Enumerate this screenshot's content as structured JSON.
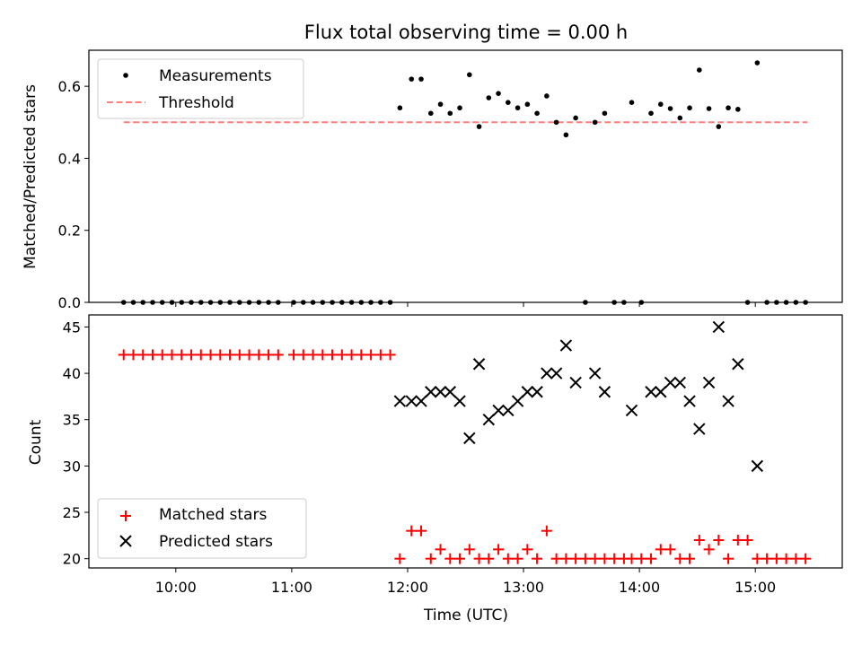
{
  "chart_data": [
    {
      "type": "scatter",
      "title": "Flux total observing time = 0.00 h",
      "ylabel": "Matched/Predicted stars",
      "xlabel": "",
      "ylim": [
        0,
        0.7
      ],
      "yticks": [
        "0.0",
        "0.2",
        "0.4",
        "0.6"
      ],
      "ytick_values": [
        0,
        0.2,
        0.4,
        0.6
      ],
      "grid": false,
      "legend_position": "upper left",
      "legend": [
        {
          "label": "Measurements",
          "marker": "dot",
          "color": "#000000"
        },
        {
          "label": "Threshold",
          "marker": "dashed-line",
          "color": "#ff7f7f"
        }
      ],
      "threshold": {
        "value": 0.5,
        "x_start": "09:33",
        "x_end": "15:27"
      },
      "series": [
        {
          "name": "Measurements",
          "points": [
            [
              "09:33",
              0
            ],
            [
              "09:38",
              0
            ],
            [
              "09:43",
              0
            ],
            [
              "09:48",
              0
            ],
            [
              "09:53",
              0
            ],
            [
              "09:58",
              0
            ],
            [
              "10:03",
              0
            ],
            [
              "10:08",
              0
            ],
            [
              "10:13",
              0
            ],
            [
              "10:18",
              0
            ],
            [
              "10:23",
              0
            ],
            [
              "10:28",
              0
            ],
            [
              "10:33",
              0
            ],
            [
              "10:38",
              0
            ],
            [
              "10:43",
              0
            ],
            [
              "10:48",
              0
            ],
            [
              "10:53",
              0
            ],
            [
              "11:01",
              0
            ],
            [
              "11:06",
              0
            ],
            [
              "11:11",
              0
            ],
            [
              "11:16",
              0
            ],
            [
              "11:21",
              0
            ],
            [
              "11:26",
              0
            ],
            [
              "11:31",
              0
            ],
            [
              "11:36",
              0
            ],
            [
              "11:41",
              0
            ],
            [
              "11:46",
              0
            ],
            [
              "11:51",
              0
            ],
            [
              "11:56",
              0.54
            ],
            [
              "12:02",
              0.62
            ],
            [
              "12:07",
              0.62
            ],
            [
              "12:12",
              0.525
            ],
            [
              "12:17",
              0.55
            ],
            [
              "12:22",
              0.525
            ],
            [
              "12:27",
              0.54
            ],
            [
              "12:32",
              0.632
            ],
            [
              "12:37",
              0.488
            ],
            [
              "12:42",
              0.568
            ],
            [
              "12:47",
              0.58
            ],
            [
              "12:52",
              0.555
            ],
            [
              "12:57",
              0.54
            ],
            [
              "13:02",
              0.55
            ],
            [
              "13:07",
              0.525
            ],
            [
              "13:12",
              0.573
            ],
            [
              "13:17",
              0.5
            ],
            [
              "13:22",
              0.465
            ],
            [
              "13:27",
              0.512
            ],
            [
              "13:32",
              0
            ],
            [
              "13:37",
              0.5
            ],
            [
              "13:42",
              0.525
            ],
            [
              "13:47",
              0
            ],
            [
              "13:52",
              0
            ],
            [
              "13:56",
              0.555
            ],
            [
              "14:01",
              0
            ],
            [
              "14:06",
              0.525
            ],
            [
              "14:11",
              0.55
            ],
            [
              "14:16",
              0.538
            ],
            [
              "14:21",
              0.512
            ],
            [
              "14:26",
              0.54
            ],
            [
              "14:31",
              0.645
            ],
            [
              "14:36",
              0.538
            ],
            [
              "14:41",
              0.488
            ],
            [
              "14:46",
              0.54
            ],
            [
              "14:51",
              0.536
            ],
            [
              "14:56",
              0
            ],
            [
              "15:01",
              0.665
            ],
            [
              "15:06",
              0
            ],
            [
              "15:11",
              0
            ],
            [
              "15:16",
              0
            ],
            [
              "15:21",
              0
            ],
            [
              "15:26",
              0
            ]
          ]
        }
      ]
    },
    {
      "type": "scatter",
      "title": "",
      "ylabel": "Count",
      "xlabel": "Time (UTC)",
      "ylim": [
        19,
        46.3
      ],
      "yticks": [
        "20",
        "25",
        "30",
        "35",
        "40",
        "45"
      ],
      "ytick_values": [
        20,
        25,
        30,
        35,
        40,
        45
      ],
      "xticks": [
        "10:00",
        "11:00",
        "12:00",
        "13:00",
        "14:00",
        "15:00"
      ],
      "xtick_values": [
        "10:00",
        "11:00",
        "12:00",
        "13:00",
        "14:00",
        "15:00"
      ],
      "xlim": [
        "09:15",
        "15:45"
      ],
      "grid": false,
      "legend_position": "lower left",
      "legend": [
        {
          "label": "Matched stars",
          "marker": "plus",
          "color": "#ff0000"
        },
        {
          "label": "Predicted stars",
          "marker": "x",
          "color": "#000000"
        }
      ],
      "series": [
        {
          "name": "Matched stars",
          "points": [
            [
              "09:33",
              42
            ],
            [
              "09:38",
              42
            ],
            [
              "09:43",
              42
            ],
            [
              "09:48",
              42
            ],
            [
              "09:53",
              42
            ],
            [
              "09:58",
              42
            ],
            [
              "10:03",
              42
            ],
            [
              "10:08",
              42
            ],
            [
              "10:13",
              42
            ],
            [
              "10:18",
              42
            ],
            [
              "10:23",
              42
            ],
            [
              "10:28",
              42
            ],
            [
              "10:33",
              42
            ],
            [
              "10:38",
              42
            ],
            [
              "10:43",
              42
            ],
            [
              "10:48",
              42
            ],
            [
              "10:53",
              42
            ],
            [
              "11:01",
              42
            ],
            [
              "11:06",
              42
            ],
            [
              "11:11",
              42
            ],
            [
              "11:16",
              42
            ],
            [
              "11:21",
              42
            ],
            [
              "11:26",
              42
            ],
            [
              "11:31",
              42
            ],
            [
              "11:36",
              42
            ],
            [
              "11:41",
              42
            ],
            [
              "11:46",
              42
            ],
            [
              "11:51",
              42
            ],
            [
              "11:56",
              20
            ],
            [
              "12:02",
              23
            ],
            [
              "12:07",
              23
            ],
            [
              "12:12",
              20
            ],
            [
              "12:17",
              21
            ],
            [
              "12:22",
              20
            ],
            [
              "12:27",
              20
            ],
            [
              "12:32",
              21
            ],
            [
              "12:37",
              20
            ],
            [
              "12:42",
              20
            ],
            [
              "12:47",
              21
            ],
            [
              "12:52",
              20
            ],
            [
              "12:57",
              20
            ],
            [
              "13:02",
              21
            ],
            [
              "13:07",
              20
            ],
            [
              "13:12",
              23
            ],
            [
              "13:17",
              20
            ],
            [
              "13:22",
              20
            ],
            [
              "13:27",
              20
            ],
            [
              "13:32",
              20
            ],
            [
              "13:37",
              20
            ],
            [
              "13:42",
              20
            ],
            [
              "13:47",
              20
            ],
            [
              "13:52",
              20
            ],
            [
              "13:56",
              20
            ],
            [
              "14:01",
              20
            ],
            [
              "14:06",
              20
            ],
            [
              "14:11",
              21
            ],
            [
              "14:16",
              21
            ],
            [
              "14:21",
              20
            ],
            [
              "14:26",
              20
            ],
            [
              "14:31",
              22
            ],
            [
              "14:36",
              21
            ],
            [
              "14:41",
              22
            ],
            [
              "14:46",
              20
            ],
            [
              "14:51",
              22
            ],
            [
              "14:56",
              22
            ],
            [
              "15:01",
              20
            ],
            [
              "15:06",
              20
            ],
            [
              "15:11",
              20
            ],
            [
              "15:16",
              20
            ],
            [
              "15:21",
              20
            ],
            [
              "15:26",
              20
            ]
          ]
        },
        {
          "name": "Predicted stars",
          "points": [
            [
              "11:56",
              37
            ],
            [
              "12:02",
              37
            ],
            [
              "12:07",
              37
            ],
            [
              "12:12",
              38
            ],
            [
              "12:17",
              38
            ],
            [
              "12:22",
              38
            ],
            [
              "12:27",
              37
            ],
            [
              "12:32",
              33
            ],
            [
              "12:37",
              41
            ],
            [
              "12:42",
              35
            ],
            [
              "12:47",
              36
            ],
            [
              "12:52",
              36
            ],
            [
              "12:57",
              37
            ],
            [
              "13:02",
              38
            ],
            [
              "13:07",
              38
            ],
            [
              "13:12",
              40
            ],
            [
              "13:17",
              40
            ],
            [
              "13:22",
              43
            ],
            [
              "13:27",
              39
            ],
            [
              "13:37",
              40
            ],
            [
              "13:42",
              38
            ],
            [
              "13:56",
              36
            ],
            [
              "14:06",
              38
            ],
            [
              "14:11",
              38
            ],
            [
              "14:16",
              39
            ],
            [
              "14:21",
              39
            ],
            [
              "14:26",
              37
            ],
            [
              "14:31",
              34
            ],
            [
              "14:36",
              39
            ],
            [
              "14:41",
              45
            ],
            [
              "14:46",
              37
            ],
            [
              "14:51",
              41
            ],
            [
              "15:01",
              30
            ]
          ]
        }
      ]
    }
  ]
}
